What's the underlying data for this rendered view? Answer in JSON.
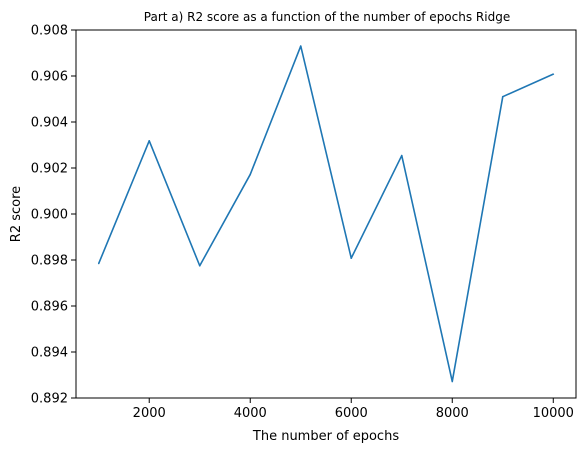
{
  "chart_data": {
    "type": "line",
    "title": "Part a) R2 score as a function of the number of epochs Ridge",
    "xlabel": "The number of epochs",
    "ylabel": "R2 score",
    "xlim": [
      550,
      10450
    ],
    "ylim": [
      0.892,
      0.908
    ],
    "xticks": [
      2000,
      4000,
      6000,
      8000,
      10000
    ],
    "xtick_labels": [
      "2000",
      "4000",
      "6000",
      "8000",
      "10000"
    ],
    "yticks": [
      0.892,
      0.894,
      0.896,
      0.898,
      0.9,
      0.902,
      0.904,
      0.906,
      0.908
    ],
    "ytick_labels": [
      "0.892",
      "0.894",
      "0.896",
      "0.898",
      "0.900",
      "0.902",
      "0.904",
      "0.906",
      "0.908"
    ],
    "grid": false,
    "series": [
      {
        "color": "#1f77b4",
        "x": [
          1000,
          2000,
          3000,
          4000,
          5000,
          6000,
          7000,
          8000,
          9000,
          10000
        ],
        "y": [
          0.89785,
          0.90318,
          0.89775,
          0.90172,
          0.9073,
          0.89808,
          0.90254,
          0.89272,
          0.9051,
          0.90608
        ]
      }
    ]
  }
}
